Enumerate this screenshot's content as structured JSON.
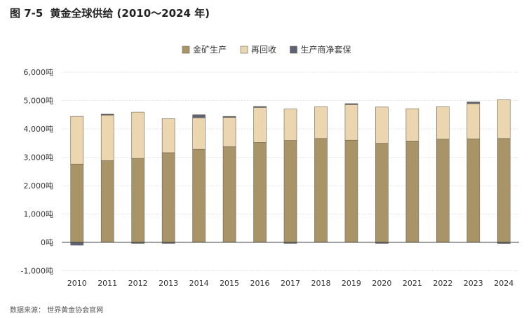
{
  "header": {
    "figure_label": "图 7-5",
    "title": "黄金全球供给 (2010～2024 年)"
  },
  "source": "数据来源：  世界黄金协会官网",
  "chart_data": {
    "type": "bar",
    "stacked": true,
    "categories": [
      "2010",
      "2011",
      "2012",
      "2013",
      "2014",
      "2015",
      "2016",
      "2017",
      "2018",
      "2019",
      "2020",
      "2021",
      "2022",
      "2023",
      "2024"
    ],
    "series": [
      {
        "name": "金矿生产",
        "color": "#a99467",
        "values": [
          2760,
          2880,
          2960,
          3160,
          3280,
          3370,
          3520,
          3590,
          3660,
          3600,
          3490,
          3570,
          3640,
          3650,
          3660
        ]
      },
      {
        "name": "再回收",
        "color": "#ecd6b0",
        "values": [
          1680,
          1630,
          1630,
          1200,
          1110,
          1060,
          1240,
          1110,
          1120,
          1270,
          1280,
          1140,
          1140,
          1240,
          1370
        ]
      },
      {
        "name": "生产商净套保",
        "color": "#5d6375",
        "values": [
          -100,
          10,
          -30,
          -30,
          110,
          10,
          30,
          -30,
          0,
          20,
          -30,
          0,
          0,
          60,
          -40
        ]
      }
    ],
    "yticks": [
      "6,000吨",
      "5,000吨",
      "4,000吨",
      "3,000吨",
      "2,000吨",
      "1,000吨",
      "0吨",
      "-1,000吨"
    ],
    "ylim": [
      -1000,
      6000
    ],
    "legend_position": "top-center",
    "grid": true
  }
}
